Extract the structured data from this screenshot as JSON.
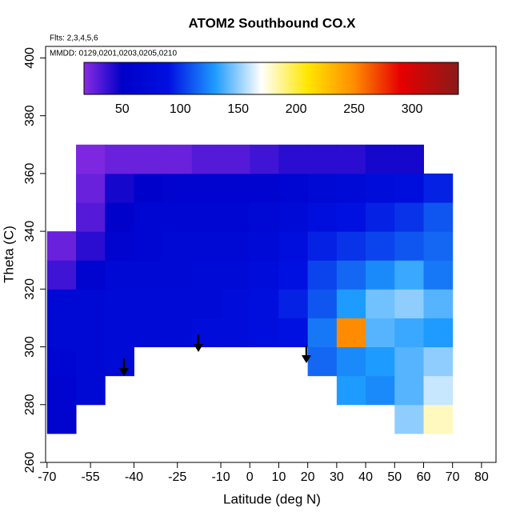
{
  "chart_data": {
    "type": "heatmap",
    "title": "ATOM2 Southbound CO.X",
    "subtitle": "Flts: 2,3,4,5,6",
    "annotation": "MMDD: 0129,0201,0203,0205,0210",
    "x_label": "Latitude (deg N)",
    "y_label": "Theta (C)",
    "xlim": [
      -70.5,
      85
    ],
    "ylim": [
      260,
      404
    ],
    "xticks": [
      -70,
      -55,
      -40,
      -25,
      -10,
      0,
      10,
      20,
      30,
      40,
      50,
      60,
      70,
      80
    ],
    "yticks": [
      260,
      280,
      300,
      320,
      340,
      360,
      380,
      400
    ],
    "x_bins": [
      -70,
      -60,
      -50,
      -40,
      -30,
      -20,
      -10,
      0,
      10,
      20,
      30,
      40,
      50,
      60,
      70
    ],
    "y_bins": [
      270,
      280,
      290,
      300,
      310,
      320,
      330,
      340,
      350,
      360,
      370
    ],
    "values": [
      [
        60,
        null,
        null,
        null,
        null,
        null,
        null,
        null,
        null,
        null,
        null,
        null,
        150,
        180
      ],
      [
        60,
        70,
        null,
        null,
        null,
        null,
        null,
        null,
        null,
        null,
        130,
        125,
        140,
        160
      ],
      [
        65,
        70,
        75,
        null,
        null,
        null,
        null,
        null,
        null,
        115,
        125,
        130,
        140,
        150
      ],
      [
        70,
        70,
        75,
        75,
        75,
        80,
        80,
        85,
        90,
        120,
        250,
        140,
        135,
        130
      ],
      [
        70,
        70,
        75,
        75,
        75,
        75,
        80,
        85,
        95,
        110,
        130,
        145,
        150,
        140
      ],
      [
        35,
        60,
        70,
        70,
        70,
        75,
        75,
        80,
        90,
        105,
        115,
        125,
        135,
        120
      ],
      [
        25,
        40,
        60,
        65,
        70,
        70,
        70,
        75,
        85,
        95,
        100,
        105,
        110,
        115
      ],
      [
        null,
        30,
        55,
        65,
        65,
        65,
        65,
        70,
        75,
        85,
        90,
        95,
        100,
        110
      ],
      [
        null,
        25,
        45,
        55,
        60,
        60,
        60,
        60,
        65,
        70,
        75,
        80,
        85,
        95
      ],
      [
        null,
        20,
        25,
        25,
        25,
        30,
        30,
        35,
        40,
        40,
        40,
        45,
        45,
        null
      ]
    ],
    "colorbar_lim": [
      17,
      340
    ],
    "colorbar_ticks": [
      50,
      100,
      150,
      200,
      250,
      300
    ],
    "colorscale": [
      [
        17,
        "#8a2be2"
      ],
      [
        50,
        "#0000c8"
      ],
      [
        90,
        "#0010e0"
      ],
      [
        130,
        "#1e9bff"
      ],
      [
        170,
        "#ffffff"
      ],
      [
        210,
        "#ffe600"
      ],
      [
        250,
        "#ff8c00"
      ],
      [
        290,
        "#e60000"
      ],
      [
        340,
        "#8b1a1a"
      ]
    ]
  }
}
